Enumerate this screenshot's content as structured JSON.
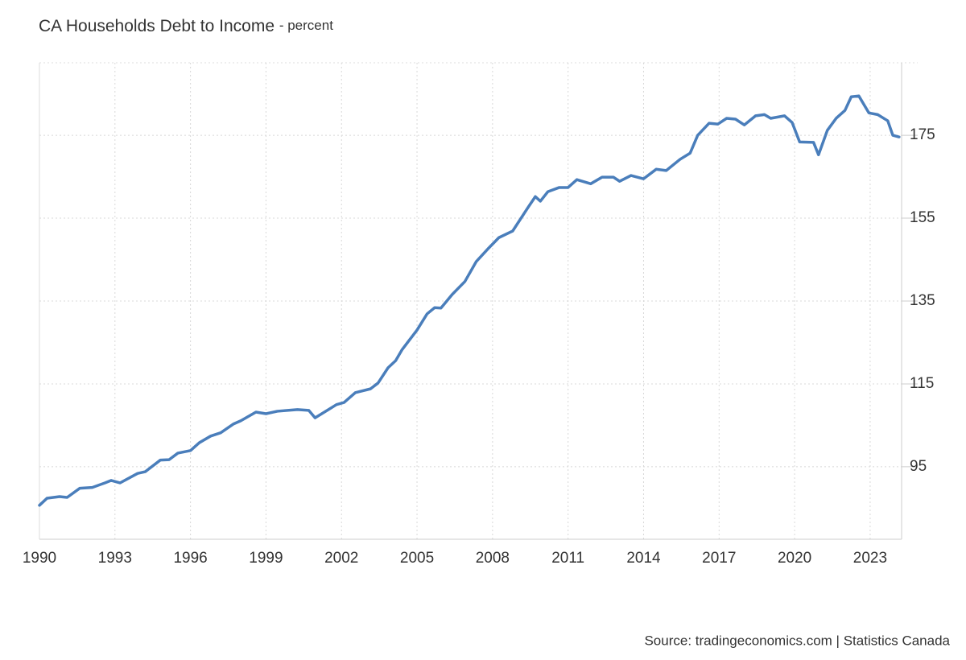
{
  "chart_data": {
    "type": "line",
    "title": "CA Households Debt to Income",
    "subtitle": "- percent",
    "source": "Source: tradingeconomics.com | Statistics Canada",
    "xlim": [
      1990,
      2024.25
    ],
    "xticks": [
      1990,
      1993,
      1996,
      1999,
      2002,
      2005,
      2008,
      2011,
      2014,
      2017,
      2020,
      2023
    ],
    "ylim": [
      77.5,
      192.5
    ],
    "yticks": [
      95,
      115,
      135,
      155,
      175
    ],
    "grid": true,
    "x": [
      1990.0,
      1990.3,
      1990.8,
      1991.1,
      1991.6,
      1992.1,
      1992.6,
      1992.85,
      1993.2,
      1993.9,
      1994.2,
      1994.8,
      1995.15,
      1995.5,
      1996.0,
      1996.35,
      1996.8,
      1997.2,
      1997.7,
      1998.0,
      1998.6,
      1999.0,
      1999.45,
      2000.25,
      2000.7,
      2000.95,
      2001.8,
      2002.1,
      2002.55,
      2003.15,
      2003.45,
      2003.85,
      2004.15,
      2004.4,
      2005.0,
      2005.4,
      2005.7,
      2005.95,
      2006.4,
      2006.9,
      2007.35,
      2007.85,
      2008.25,
      2008.8,
      2009.4,
      2009.7,
      2009.9,
      2010.2,
      2010.65,
      2011.0,
      2011.35,
      2011.9,
      2012.35,
      2012.8,
      2013.05,
      2013.5,
      2014.0,
      2014.5,
      2014.9,
      2015.45,
      2015.85,
      2016.15,
      2016.6,
      2016.95,
      2017.3,
      2017.65,
      2018.0,
      2018.45,
      2018.8,
      2019.05,
      2019.6,
      2019.9,
      2020.2,
      2020.75,
      2020.95,
      2021.3,
      2021.65,
      2022.0,
      2022.25,
      2022.55,
      2022.95,
      2023.3,
      2023.7,
      2023.9,
      2024.15
    ],
    "series": [
      {
        "name": "CA Households Debt to Income",
        "color": "#4a7ebb",
        "values": [
          85.7,
          87.4,
          87.8,
          87.6,
          89.8,
          90.0,
          91.1,
          91.7,
          91.1,
          93.4,
          93.8,
          96.6,
          96.7,
          98.3,
          98.9,
          100.8,
          102.4,
          103.2,
          105.3,
          106.1,
          108.2,
          107.8,
          108.4,
          108.8,
          108.6,
          106.8,
          110.0,
          110.5,
          112.9,
          113.8,
          115.2,
          118.9,
          120.6,
          123.2,
          128.0,
          131.9,
          133.4,
          133.3,
          136.6,
          139.7,
          144.5,
          147.8,
          150.3,
          151.9,
          157.5,
          160.2,
          159.1,
          161.4,
          162.4,
          162.4,
          164.3,
          163.3,
          164.9,
          164.9,
          163.9,
          165.3,
          164.5,
          166.8,
          166.5,
          169.2,
          170.7,
          175.0,
          177.9,
          177.7,
          179.1,
          178.9,
          177.5,
          179.7,
          180.0,
          179.1,
          179.7,
          178.1,
          173.4,
          173.3,
          170.3,
          176.2,
          179.1,
          181.0,
          184.3,
          184.5,
          180.4,
          180.0,
          178.5,
          175.0,
          174.6
        ]
      }
    ]
  }
}
